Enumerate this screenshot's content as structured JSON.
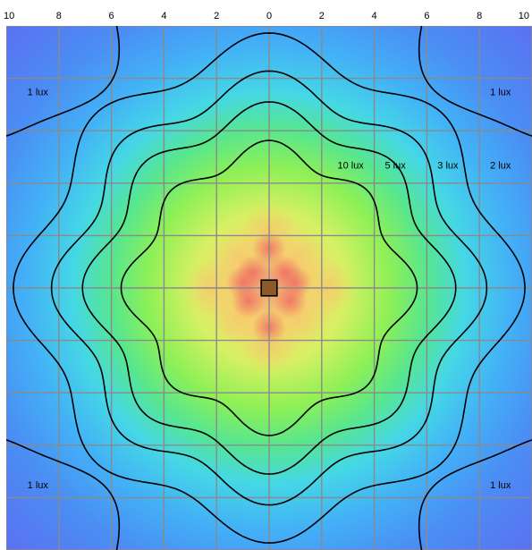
{
  "chart_data": {
    "type": "heatmap",
    "subtype": "isolux-contour",
    "title": "",
    "xlabel": "",
    "ylabel": "",
    "x_tick_labels": [
      "10",
      "8",
      "6",
      "4",
      "2",
      "0",
      "2",
      "4",
      "6",
      "8",
      "10"
    ],
    "x_range": [
      -10,
      10
    ],
    "y_range": [
      -10,
      10
    ],
    "grid": true,
    "grid_step": 2,
    "colormap": [
      "#5b72f2",
      "#3fa0f6",
      "#41d4f0",
      "#6de88a",
      "#9af04f",
      "#f4f06c",
      "#f8c86a",
      "#f07a6a",
      "#e05a5a"
    ],
    "contours": [
      {
        "label": "10 lux",
        "value": 10
      },
      {
        "label": "5 lux",
        "value": 5
      },
      {
        "label": "3 lux",
        "value": 3
      },
      {
        "label": "2 lux",
        "value": 2
      },
      {
        "label": "1 lux",
        "value": 1
      }
    ],
    "contour_labels": [
      {
        "text": "10 lux",
        "x": 3.1,
        "y": 4.7
      },
      {
        "text": "5 lux",
        "x": 4.8,
        "y": 4.7
      },
      {
        "text": "3 lux",
        "x": 6.8,
        "y": 4.7
      },
      {
        "text": "2 lux",
        "x": 8.8,
        "y": 4.7
      },
      {
        "text": "1 lux",
        "x": -8.8,
        "y": 7.5
      },
      {
        "text": "1 lux",
        "x": 8.8,
        "y": 7.5
      },
      {
        "text": "1 lux",
        "x": -8.8,
        "y": -7.5
      },
      {
        "text": "1 lux",
        "x": 8.8,
        "y": -7.5
      }
    ],
    "luminaire": {
      "x": 0,
      "y": 0,
      "size": 0.6,
      "color": "#8b5a2b"
    }
  }
}
